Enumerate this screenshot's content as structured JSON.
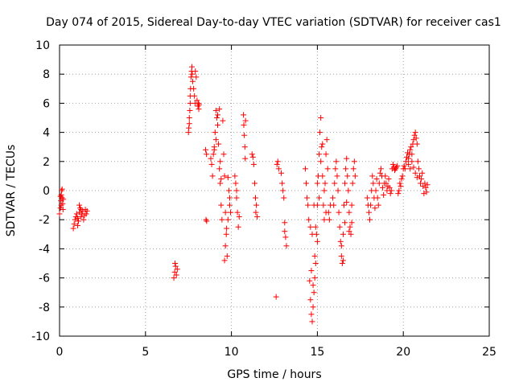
{
  "chart_data": {
    "type": "scatter",
    "title": "Day 074 of 2015, Sidereal Day-to-day VTEC variation (SDTVAR) for receiver cas1",
    "xlabel": "GPS time / hours",
    "ylabel": "SDTVAR / TECUs",
    "xlim": [
      0,
      25
    ],
    "ylim": [
      -10,
      10
    ],
    "xticks": [
      0,
      5,
      10,
      15,
      20,
      25
    ],
    "yticks": [
      -10,
      -8,
      -6,
      -4,
      -2,
      0,
      2,
      4,
      6,
      8,
      10
    ],
    "grid": true,
    "marker": "+",
    "color": "#ff0000",
    "series": [
      {
        "name": "SDTVAR",
        "points": [
          [
            0.0,
            -1.6
          ],
          [
            0.05,
            -1.2
          ],
          [
            0.08,
            -0.7
          ],
          [
            0.1,
            -0.3
          ],
          [
            0.12,
            0.0
          ],
          [
            0.15,
            -0.5
          ],
          [
            0.18,
            -0.9
          ],
          [
            0.2,
            -1.3
          ],
          [
            0.22,
            -0.6
          ],
          [
            0.05,
            -0.4
          ],
          [
            0.1,
            -1.0
          ],
          [
            0.15,
            0.1
          ],
          [
            0.8,
            -2.6
          ],
          [
            0.85,
            -2.3
          ],
          [
            0.9,
            -2.0
          ],
          [
            0.95,
            -1.8
          ],
          [
            1.0,
            -1.6
          ],
          [
            1.05,
            -1.9
          ],
          [
            1.1,
            -2.1
          ],
          [
            1.15,
            -1.5
          ],
          [
            1.2,
            -1.2
          ],
          [
            1.25,
            -1.8
          ],
          [
            1.3,
            -1.6
          ],
          [
            1.35,
            -1.4
          ],
          [
            1.4,
            -2.0
          ],
          [
            1.45,
            -1.7
          ],
          [
            1.5,
            -1.3
          ],
          [
            1.55,
            -1.6
          ],
          [
            1.6,
            -1.4
          ],
          [
            1.15,
            -1.0
          ],
          [
            1.05,
            -2.4
          ],
          [
            1.25,
            -1.3
          ],
          [
            6.65,
            -6.0
          ],
          [
            6.7,
            -5.6
          ],
          [
            6.75,
            -5.2
          ],
          [
            6.8,
            -5.8
          ],
          [
            6.85,
            -5.4
          ],
          [
            6.72,
            -5.0
          ],
          [
            7.5,
            4.0
          ],
          [
            7.52,
            4.3
          ],
          [
            7.55,
            5.0
          ],
          [
            7.58,
            5.5
          ],
          [
            7.6,
            6.0
          ],
          [
            7.62,
            7.0
          ],
          [
            7.65,
            7.8
          ],
          [
            7.68,
            8.2
          ],
          [
            7.7,
            8.5
          ],
          [
            7.72,
            8.0
          ],
          [
            7.75,
            7.5
          ],
          [
            7.8,
            7.0
          ],
          [
            7.85,
            6.5
          ],
          [
            7.88,
            6.0
          ],
          [
            7.9,
            8.2
          ],
          [
            7.95,
            7.8
          ],
          [
            8.0,
            6.2
          ],
          [
            8.05,
            5.8
          ],
          [
            8.08,
            6.0
          ],
          [
            8.1,
            5.6
          ],
          [
            8.12,
            5.9
          ],
          [
            7.55,
            4.6
          ],
          [
            7.6,
            6.5
          ],
          [
            8.5,
            2.8
          ],
          [
            8.55,
            2.5
          ],
          [
            8.52,
            -2.0
          ],
          [
            8.56,
            -2.1
          ],
          [
            8.8,
            2.2
          ],
          [
            8.85,
            1.8
          ],
          [
            8.9,
            1.0
          ],
          [
            8.95,
            2.5
          ],
          [
            9.0,
            3.0
          ],
          [
            9.05,
            4.0
          ],
          [
            9.1,
            5.5
          ],
          [
            9.15,
            5.0
          ],
          [
            9.2,
            4.5
          ],
          [
            9.25,
            3.2
          ],
          [
            9.3,
            1.5
          ],
          [
            9.35,
            0.5
          ],
          [
            9.4,
            -1.0
          ],
          [
            9.45,
            -2.0
          ],
          [
            9.5,
            4.8
          ],
          [
            9.55,
            2.5
          ],
          [
            9.6,
            1.0
          ],
          [
            9.65,
            -1.5
          ],
          [
            9.7,
            -3.0
          ],
          [
            9.75,
            -4.5
          ],
          [
            9.8,
            -2.0
          ],
          [
            9.85,
            0.0
          ],
          [
            9.9,
            -0.5
          ],
          [
            9.95,
            -1.5
          ],
          [
            9.0,
            2.8
          ],
          [
            9.1,
            3.5
          ],
          [
            9.2,
            5.2
          ],
          [
            9.3,
            5.6
          ],
          [
            9.35,
            2.0
          ],
          [
            9.4,
            0.8
          ],
          [
            9.6,
            -4.8
          ],
          [
            9.65,
            -3.8
          ],
          [
            9.72,
            -2.6
          ],
          [
            9.8,
            0.9
          ],
          [
            9.9,
            -1.0
          ],
          [
            10.2,
            1.0
          ],
          [
            10.25,
            0.5
          ],
          [
            10.3,
            -0.5
          ],
          [
            10.35,
            -1.5
          ],
          [
            10.4,
            -2.5
          ],
          [
            10.45,
            -1.8
          ],
          [
            10.3,
            0.0
          ],
          [
            10.7,
            5.2
          ],
          [
            10.72,
            4.5
          ],
          [
            10.75,
            3.8
          ],
          [
            10.78,
            3.0
          ],
          [
            10.8,
            2.2
          ],
          [
            10.82,
            4.8
          ],
          [
            11.2,
            2.5
          ],
          [
            11.25,
            2.3
          ],
          [
            11.3,
            1.8
          ],
          [
            11.35,
            0.5
          ],
          [
            11.4,
            -0.5
          ],
          [
            11.45,
            -1.0
          ],
          [
            11.5,
            -1.8
          ],
          [
            11.42,
            -1.5
          ],
          [
            12.6,
            -7.3
          ],
          [
            12.65,
            1.8
          ],
          [
            12.7,
            2.0
          ],
          [
            12.75,
            1.5
          ],
          [
            12.9,
            1.2
          ],
          [
            12.95,
            0.5
          ],
          [
            13.0,
            0.0
          ],
          [
            13.05,
            -0.5
          ],
          [
            13.1,
            -2.2
          ],
          [
            13.15,
            -3.2
          ],
          [
            13.2,
            -3.8
          ],
          [
            13.1,
            -2.8
          ],
          [
            14.3,
            1.5
          ],
          [
            14.35,
            0.5
          ],
          [
            14.4,
            -0.5
          ],
          [
            14.45,
            -1.0
          ],
          [
            14.5,
            -2.0
          ],
          [
            14.55,
            -6.2
          ],
          [
            14.6,
            -7.5
          ],
          [
            14.65,
            -8.5
          ],
          [
            14.7,
            -9.0
          ],
          [
            14.75,
            -8.0
          ],
          [
            14.8,
            -7.0
          ],
          [
            14.85,
            -6.0
          ],
          [
            14.9,
            -5.0
          ],
          [
            14.95,
            -3.0
          ],
          [
            15.0,
            -1.0
          ],
          [
            15.05,
            1.0
          ],
          [
            15.1,
            2.5
          ],
          [
            15.15,
            4.0
          ],
          [
            15.2,
            5.0
          ],
          [
            15.25,
            3.0
          ],
          [
            15.3,
            1.0
          ],
          [
            15.35,
            -1.0
          ],
          [
            15.4,
            -2.0
          ],
          [
            15.45,
            0.5
          ],
          [
            15.5,
            2.5
          ],
          [
            15.55,
            3.5
          ],
          [
            15.6,
            1.5
          ],
          [
            15.65,
            -1.5
          ],
          [
            15.7,
            -2.0
          ],
          [
            15.75,
            -1.0
          ],
          [
            14.6,
            -2.5
          ],
          [
            14.7,
            -3.0
          ],
          [
            14.8,
            -1.0
          ],
          [
            14.9,
            -2.5
          ],
          [
            15.0,
            0.5
          ],
          [
            15.1,
            -0.5
          ],
          [
            15.2,
            2.0
          ],
          [
            15.3,
            3.2
          ],
          [
            15.4,
            0.0
          ],
          [
            15.5,
            -1.5
          ],
          [
            14.65,
            -5.5
          ],
          [
            14.75,
            -6.5
          ],
          [
            14.85,
            -4.5
          ],
          [
            15.0,
            -3.5
          ],
          [
            15.9,
            -0.5
          ],
          [
            15.95,
            -1.0
          ],
          [
            16.0,
            0.5
          ],
          [
            16.05,
            1.5
          ],
          [
            16.1,
            2.0
          ],
          [
            16.15,
            1.0
          ],
          [
            16.2,
            0.0
          ],
          [
            16.25,
            -1.5
          ],
          [
            16.3,
            -2.5
          ],
          [
            16.35,
            -3.5
          ],
          [
            16.4,
            -4.5
          ],
          [
            16.45,
            -5.0
          ],
          [
            16.5,
            -3.0
          ],
          [
            16.55,
            -1.0
          ],
          [
            16.6,
            0.5
          ],
          [
            16.65,
            1.5
          ],
          [
            16.7,
            2.2
          ],
          [
            16.75,
            1.0
          ],
          [
            16.8,
            0.0
          ],
          [
            16.85,
            -1.5
          ],
          [
            16.9,
            -2.5
          ],
          [
            16.95,
            -3.0
          ],
          [
            17.0,
            -1.0
          ],
          [
            17.05,
            0.5
          ],
          [
            17.1,
            1.5
          ],
          [
            17.15,
            2.0
          ],
          [
            17.2,
            1.0
          ],
          [
            16.4,
            -3.8
          ],
          [
            16.5,
            -4.8
          ],
          [
            16.6,
            -2.2
          ],
          [
            16.7,
            -0.8
          ],
          [
            16.85,
            -2.8
          ],
          [
            17.0,
            -2.2
          ],
          [
            17.9,
            -0.5
          ],
          [
            17.95,
            -1.0
          ],
          [
            18.0,
            -1.5
          ],
          [
            18.05,
            -2.0
          ],
          [
            18.1,
            -1.0
          ],
          [
            18.15,
            0.0
          ],
          [
            18.2,
            1.0
          ],
          [
            18.25,
            0.5
          ],
          [
            18.3,
            -0.5
          ],
          [
            18.35,
            -1.2
          ],
          [
            18.4,
            0.0
          ],
          [
            18.45,
            0.8
          ],
          [
            18.5,
            -0.5
          ],
          [
            18.55,
            -1.0
          ],
          [
            18.6,
            0.5
          ],
          [
            18.65,
            1.2
          ],
          [
            18.7,
            1.5
          ],
          [
            18.75,
            1.0
          ],
          [
            18.8,
            0.2
          ],
          [
            18.85,
            -0.3
          ],
          [
            18.9,
            0.5
          ],
          [
            18.95,
            1.0
          ],
          [
            19.0,
            0.5
          ],
          [
            19.05,
            0.0
          ],
          [
            19.1,
            0.3
          ],
          [
            19.15,
            0.8
          ],
          [
            19.2,
            0.2
          ],
          [
            19.25,
            -0.2
          ],
          [
            19.3,
            0.0
          ],
          [
            19.35,
            1.5
          ],
          [
            19.4,
            1.8
          ],
          [
            19.45,
            1.6
          ],
          [
            19.5,
            1.4
          ],
          [
            19.55,
            1.5
          ],
          [
            19.6,
            1.6
          ],
          [
            19.65,
            1.7
          ],
          [
            19.7,
            -0.2
          ],
          [
            19.75,
            0.0
          ],
          [
            19.8,
            0.5
          ],
          [
            19.85,
            0.3
          ],
          [
            19.9,
            0.8
          ],
          [
            19.95,
            1.0
          ],
          [
            20.0,
            1.5
          ],
          [
            20.05,
            1.7
          ],
          [
            20.1,
            1.5
          ],
          [
            20.15,
            2.0
          ],
          [
            20.2,
            2.3
          ],
          [
            20.25,
            2.6
          ],
          [
            20.3,
            2.2
          ],
          [
            20.35,
            2.5
          ],
          [
            20.4,
            2.8
          ],
          [
            20.45,
            3.0
          ],
          [
            20.5,
            2.5
          ],
          [
            20.55,
            3.2
          ],
          [
            20.6,
            3.5
          ],
          [
            20.65,
            3.8
          ],
          [
            20.7,
            4.0
          ],
          [
            20.75,
            3.6
          ],
          [
            20.8,
            3.2
          ],
          [
            20.85,
            2.0
          ],
          [
            20.9,
            1.5
          ],
          [
            20.95,
            1.0
          ],
          [
            21.0,
            0.5
          ],
          [
            21.05,
            0.8
          ],
          [
            21.1,
            1.2
          ],
          [
            21.15,
            0.3
          ],
          [
            21.2,
            -0.2
          ],
          [
            21.25,
            0.5
          ],
          [
            21.3,
            0.2
          ],
          [
            21.35,
            -0.1
          ],
          [
            21.4,
            0.4
          ],
          [
            20.3,
            1.8
          ],
          [
            20.4,
            1.5
          ],
          [
            20.5,
            2.0
          ],
          [
            20.6,
            1.6
          ],
          [
            20.7,
            1.2
          ],
          [
            20.8,
            0.9
          ]
        ]
      }
    ]
  }
}
